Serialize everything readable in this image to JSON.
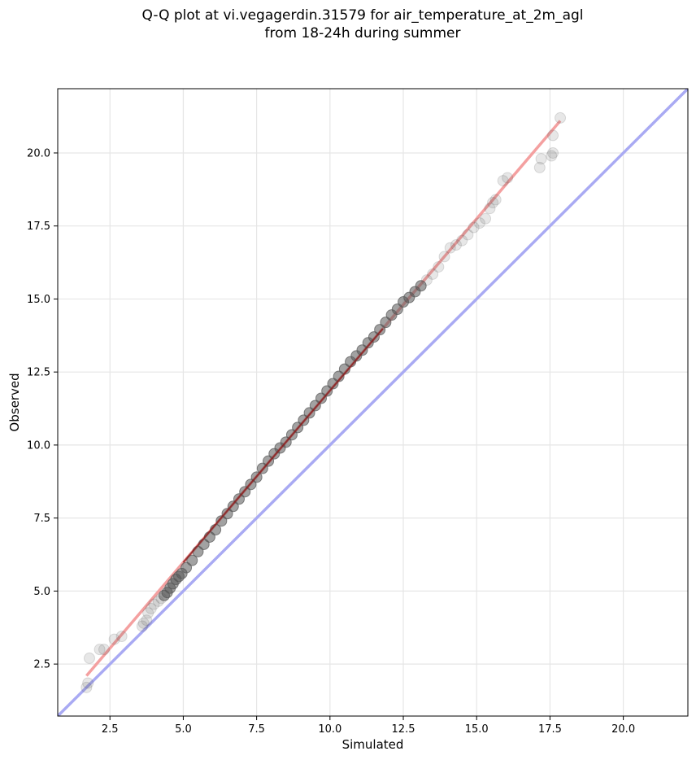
{
  "chart_data": {
    "type": "scatter",
    "title_lines": [
      "Q-Q plot at vi.vegagerdin.31579 for air_temperature_at_2m_agl",
      "from 18-24h during summer"
    ],
    "xlabel": "Simulated",
    "ylabel": "Observed",
    "xlim": [
      0.72,
      22.2
    ],
    "ylim": [
      0.72,
      22.2
    ],
    "xticks": [
      2.5,
      5.0,
      7.5,
      10.0,
      12.5,
      15.0,
      17.5,
      20.0
    ],
    "yticks": [
      2.5,
      5.0,
      7.5,
      10.0,
      12.5,
      15.0,
      17.5,
      20.0
    ],
    "grid": true,
    "colors": {
      "points": "#555555",
      "fit_line": "#f4a0a0",
      "fit_line_dense": "#8b1a1a",
      "identity_line": "#a9aaf3",
      "grid": "#e6e6e6"
    },
    "series": [
      {
        "kind": "points",
        "x": [
          1.7,
          1.75,
          1.8,
          2.15,
          2.3,
          2.65,
          2.9,
          3.6,
          3.65,
          3.75,
          3.8,
          3.9,
          4.0,
          4.15,
          4.25,
          4.35,
          4.45,
          4.55,
          4.65,
          4.75,
          4.85,
          4.95,
          5.1,
          5.3,
          5.5,
          5.7,
          5.9,
          6.1,
          6.3,
          6.5,
          6.7,
          6.9,
          7.1,
          7.3,
          7.5,
          7.7,
          7.9,
          8.1,
          8.3,
          8.5,
          8.7,
          8.9,
          9.1,
          9.3,
          9.5,
          9.7,
          9.9,
          10.1,
          10.3,
          10.5,
          10.7,
          10.9,
          11.1,
          11.3,
          11.5,
          11.7,
          11.9,
          12.1,
          12.3,
          12.5,
          12.7,
          12.9,
          13.1,
          13.3,
          13.5,
          13.7,
          13.9,
          14.1,
          14.3,
          14.5,
          14.7,
          14.9,
          15.1,
          15.3,
          15.45,
          15.55,
          15.65,
          15.9,
          16.05,
          17.15,
          17.2,
          17.55,
          17.6,
          17.6,
          17.85
        ],
        "y": [
          1.7,
          1.85,
          2.7,
          3.0,
          3.0,
          3.35,
          3.45,
          3.8,
          3.9,
          4.0,
          4.25,
          4.4,
          4.55,
          4.65,
          4.75,
          4.85,
          4.95,
          5.1,
          5.25,
          5.4,
          5.5,
          5.6,
          5.8,
          6.05,
          6.35,
          6.6,
          6.85,
          7.1,
          7.4,
          7.65,
          7.9,
          8.15,
          8.4,
          8.65,
          8.9,
          9.2,
          9.45,
          9.7,
          9.9,
          10.1,
          10.35,
          10.6,
          10.85,
          11.1,
          11.35,
          11.6,
          11.85,
          12.1,
          12.35,
          12.6,
          12.85,
          13.05,
          13.25,
          13.5,
          13.7,
          13.95,
          14.2,
          14.45,
          14.65,
          14.9,
          15.05,
          15.25,
          15.45,
          15.65,
          15.85,
          16.1,
          16.45,
          16.75,
          16.85,
          17.0,
          17.2,
          17.45,
          17.6,
          17.75,
          18.1,
          18.3,
          18.4,
          19.05,
          19.15,
          19.5,
          19.8,
          19.9,
          20.0,
          20.6,
          21.2
        ]
      },
      {
        "kind": "fit_line",
        "x": [
          1.7,
          17.85
        ],
        "y": [
          2.1,
          21.1
        ]
      },
      {
        "kind": "identity_line",
        "x": [
          0.72,
          22.2
        ],
        "y": [
          0.72,
          22.2
        ]
      }
    ]
  }
}
